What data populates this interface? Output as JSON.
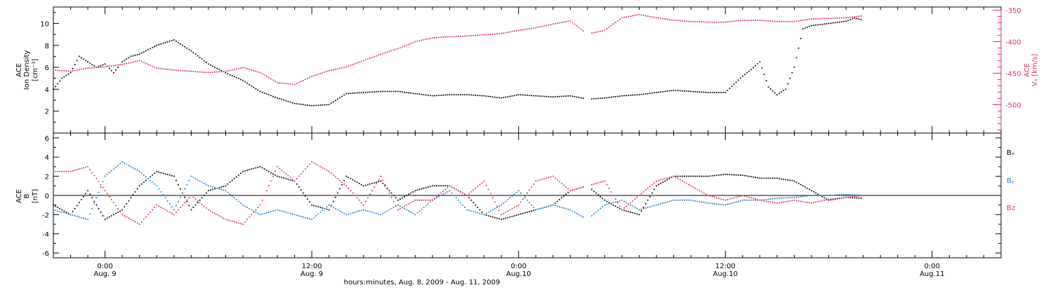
{
  "chart_data": [
    {
      "type": "scatter",
      "panel": "top",
      "ylabel_left": {
        "instrument": "ACE",
        "quantity": "Ion Density",
        "unit": "[cm⁻³]"
      },
      "ylabel_right": {
        "instrument": "ACE",
        "quantity": "Vₓ",
        "unit": "[km/s]"
      },
      "ylim_left": [
        0,
        11.5
      ],
      "ylim_right": [
        -545,
        -345
      ],
      "yticks_left": [
        2,
        4,
        6,
        8,
        10
      ],
      "yticks_right": [
        -350,
        -400,
        -450,
        -500
      ],
      "series": [
        {
          "name": "Ion Density",
          "axis": "left",
          "color": "#000000",
          "x_hours": [
            -3,
            -2.5,
            -2,
            -1.5,
            -1,
            -0.5,
            0,
            0.5,
            1,
            1.5,
            2,
            3,
            4,
            5,
            6,
            7,
            8,
            9,
            10,
            11,
            12,
            13,
            14,
            15,
            16,
            17,
            18,
            19,
            20,
            21,
            22,
            23,
            24,
            25,
            26,
            27,
            28,
            29,
            30,
            31,
            32,
            33,
            34,
            35,
            36,
            37,
            37.5,
            38,
            38.5,
            39,
            39.5,
            40,
            40.5,
            41,
            42,
            43,
            43.5,
            44
          ],
          "values": [
            4.0,
            5.0,
            5.5,
            7.0,
            6.5,
            6.0,
            6.3,
            5.5,
            6.5,
            7.0,
            7.2,
            8.0,
            8.5,
            7.5,
            6.3,
            5.5,
            4.8,
            3.8,
            3.2,
            2.7,
            2.5,
            2.6,
            3.6,
            3.7,
            3.8,
            3.8,
            3.6,
            3.4,
            3.5,
            3.5,
            3.4,
            3.2,
            3.5,
            3.4,
            3.3,
            3.4,
            3.1,
            3.2,
            3.4,
            3.5,
            3.7,
            3.9,
            3.8,
            3.7,
            3.7,
            5.2,
            5.8,
            6.5,
            4.2,
            3.5,
            4.0,
            6.0,
            9.5,
            9.8,
            10.0,
            10.2,
            10.5,
            10.3
          ]
        },
        {
          "name": "Vₓ",
          "axis": "right",
          "color": "#e0305f",
          "x_hours": [
            -3,
            -2,
            -1,
            0,
            1,
            2,
            3,
            4,
            5,
            6,
            7,
            8,
            9,
            10,
            11,
            12,
            13,
            14,
            15,
            16,
            17,
            18,
            19,
            20,
            21,
            22,
            23,
            24,
            25,
            26,
            27,
            28,
            29,
            30,
            31,
            32,
            33,
            34,
            35,
            36,
            37,
            38,
            39,
            40,
            41,
            42,
            43,
            44
          ],
          "values": [
            -445,
            -447,
            -442,
            -440,
            -436,
            -430,
            -442,
            -445,
            -447,
            -449,
            -447,
            -441,
            -449,
            -465,
            -468,
            -455,
            -446,
            -440,
            -430,
            -420,
            -411,
            -400,
            -394,
            -392,
            -391,
            -389,
            -387,
            -382,
            -378,
            -372,
            -367,
            -388,
            -382,
            -362,
            -357,
            -362,
            -366,
            -368,
            -369,
            -369,
            -366,
            -366,
            -368,
            -368,
            -364,
            -363,
            -362,
            -359
          ]
        }
      ]
    },
    {
      "type": "scatter",
      "panel": "bottom",
      "ylabel": {
        "instrument": "ACE",
        "quantity": "B",
        "unit": "[nT]"
      },
      "ylim": [
        -6.5,
        6.5
      ],
      "yticks": [
        -6,
        -4,
        -2,
        0,
        2,
        4,
        6
      ],
      "series": [
        {
          "name": "Bₓ",
          "color": "#000000",
          "x_hours": [
            -3,
            -2,
            -1,
            0,
            1,
            2,
            3,
            4,
            5,
            6,
            7,
            8,
            9,
            10,
            11,
            12,
            13,
            14,
            15,
            16,
            17,
            18,
            19,
            20,
            21,
            22,
            23,
            24,
            25,
            26,
            27,
            28,
            29,
            30,
            31,
            32,
            33,
            34,
            35,
            36,
            37,
            38,
            39,
            40,
            41,
            42,
            43,
            44
          ],
          "values": [
            -1.0,
            -2.0,
            0.5,
            -2.5,
            -1.5,
            1.0,
            2.5,
            2.0,
            -1.5,
            0.5,
            1.0,
            2.5,
            3.0,
            2.0,
            1.5,
            -1.0,
            -1.5,
            2.0,
            1.0,
            1.5,
            -0.5,
            0.5,
            1.0,
            1.0,
            0.0,
            -2.0,
            -2.5,
            -2.0,
            -1.5,
            -1.0,
            0.5,
            1.0,
            -0.5,
            -1.5,
            -2.0,
            1.0,
            2.0,
            2.0,
            2.0,
            2.2,
            2.1,
            1.8,
            1.8,
            1.5,
            0.5,
            -0.5,
            -0.2,
            -0.3
          ]
        },
        {
          "name": "Bᵧ",
          "color": "#1e7fd4",
          "x_hours": [
            -3,
            -2,
            -1,
            0,
            1,
            2,
            3,
            4,
            5,
            6,
            7,
            8,
            9,
            10,
            11,
            12,
            13,
            14,
            15,
            16,
            17,
            18,
            19,
            20,
            21,
            22,
            23,
            24,
            25,
            26,
            27,
            28,
            29,
            30,
            31,
            32,
            33,
            34,
            35,
            36,
            37,
            38,
            39,
            40,
            41,
            42,
            43,
            44
          ],
          "values": [
            -1.5,
            -2.0,
            -2.5,
            2.0,
            3.5,
            2.5,
            1.0,
            -1.5,
            2.0,
            1.0,
            0.5,
            -1.0,
            -2.0,
            -1.5,
            -2.0,
            -2.5,
            -1.0,
            -2.0,
            -1.5,
            -2.0,
            -1.0,
            -2.0,
            -0.5,
            0.5,
            -1.5,
            -2.0,
            -1.0,
            0.5,
            -1.5,
            -1.0,
            -1.5,
            -2.5,
            -1.0,
            -0.5,
            -1.5,
            -1.0,
            -0.5,
            -0.5,
            -0.8,
            -1.0,
            -0.5,
            -0.5,
            -0.3,
            -0.2,
            0.0,
            0.0,
            0.1,
            0.0
          ]
        },
        {
          "name": "Bz",
          "color": "#e0305f",
          "x_hours": [
            -3,
            -2,
            -1,
            0,
            1,
            2,
            3,
            4,
            5,
            6,
            7,
            8,
            9,
            10,
            11,
            12,
            13,
            14,
            15,
            16,
            17,
            18,
            19,
            20,
            21,
            22,
            23,
            24,
            25,
            26,
            27,
            28,
            29,
            30,
            31,
            32,
            33,
            34,
            35,
            36,
            37,
            38,
            39,
            40,
            41,
            42,
            43,
            44
          ],
          "values": [
            2.5,
            2.5,
            3.0,
            0.5,
            -2.0,
            -3.0,
            -1.0,
            -2.0,
            0.0,
            -1.5,
            -2.5,
            -3.0,
            -1.0,
            3.0,
            1.5,
            3.5,
            2.5,
            1.0,
            -1.0,
            2.0,
            -1.5,
            -0.5,
            -0.5,
            1.0,
            0.0,
            1.5,
            -2.0,
            -1.0,
            1.5,
            2.0,
            0.5,
            1.0,
            1.5,
            -1.5,
            0.0,
            1.5,
            2.0,
            1.0,
            0.0,
            -0.5,
            0.0,
            -0.5,
            -0.8,
            -0.5,
            -0.8,
            -0.4,
            -0.2,
            0.0
          ]
        }
      ]
    }
  ],
  "x_axis": {
    "range_hours": [
      -3.0,
      52.0
    ],
    "minor_step_hours": 1,
    "major_step_hours": 12,
    "ticks": [
      {
        "hour": 0,
        "time": "0:00",
        "date": "Aug. 9"
      },
      {
        "hour": 12,
        "time": "12:00",
        "date": "Aug. 9"
      },
      {
        "hour": 24,
        "time": "0:00",
        "date": "Aug.10"
      },
      {
        "hour": 36,
        "time": "12:00",
        "date": "Aug.10"
      },
      {
        "hour": 48,
        "time": "0:00",
        "date": "Aug.11"
      }
    ],
    "title": "hours:minutes, Aug.  8, 2009 - Aug. 11, 2009"
  },
  "colors": {
    "black": "#000000",
    "blue": "#1e7fd4",
    "red": "#e0305f"
  }
}
